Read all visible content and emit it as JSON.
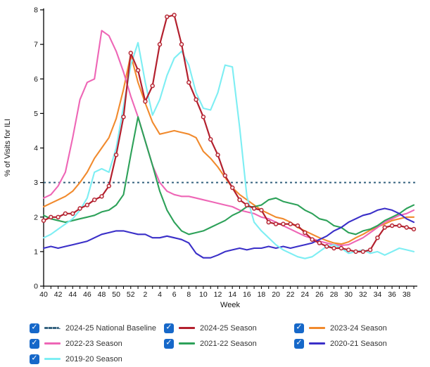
{
  "chart_data": {
    "type": "line",
    "title": "",
    "xlabel": "Week",
    "ylabel": "% of Visits for ILI",
    "ylim": [
      0,
      8
    ],
    "y_ticks": [
      0,
      1,
      2,
      3,
      4,
      5,
      6,
      7,
      8
    ],
    "grid": false,
    "weeks": [
      40,
      41,
      42,
      43,
      44,
      45,
      46,
      47,
      48,
      49,
      50,
      51,
      52,
      1,
      2,
      3,
      4,
      5,
      6,
      7,
      8,
      9,
      10,
      11,
      12,
      13,
      14,
      15,
      16,
      17,
      18,
      19,
      20,
      21,
      22,
      23,
      24,
      25,
      26,
      27,
      28,
      29,
      30,
      31,
      32,
      33,
      34,
      35,
      36,
      37,
      38,
      39
    ],
    "x_tick_label_rule": "labels shown on even week numbers only",
    "baseline": {
      "name": "2024-25 National Baseline",
      "value": 3.0,
      "color": "#35627f",
      "style": "dotted"
    },
    "series": [
      {
        "name": "2024-25 Season",
        "color": "#b3202e",
        "markers": true,
        "marker_fill": "#fbe9e9",
        "values": [
          1.9,
          2.0,
          2.0,
          2.1,
          2.1,
          2.25,
          2.35,
          2.5,
          2.6,
          2.9,
          3.8,
          4.9,
          6.75,
          6.25,
          5.35,
          5.8,
          7.0,
          7.8,
          7.85,
          7.0,
          5.9,
          5.4,
          4.9,
          4.25,
          3.8,
          3.2,
          2.85,
          2.5,
          2.35,
          2.25,
          2.2,
          1.85,
          1.8,
          1.8,
          1.8,
          1.75,
          1.55,
          1.35,
          1.25,
          1.15,
          1.1,
          1.1,
          1.05,
          1.0,
          1.0,
          1.05,
          1.4,
          1.7,
          1.75,
          1.75,
          1.7,
          1.65
        ]
      },
      {
        "name": "2023-24 Season",
        "color": "#f18a2d",
        "markers": false,
        "values": [
          2.3,
          2.4,
          2.5,
          2.6,
          2.75,
          3.0,
          3.3,
          3.7,
          4.0,
          4.3,
          4.85,
          5.7,
          6.7,
          5.9,
          5.3,
          4.75,
          4.4,
          4.45,
          4.5,
          4.45,
          4.4,
          4.3,
          3.9,
          3.7,
          3.45,
          3.15,
          2.85,
          2.65,
          2.5,
          2.35,
          2.2,
          2.1,
          2.0,
          1.95,
          1.85,
          1.7,
          1.6,
          1.5,
          1.4,
          1.32,
          1.25,
          1.22,
          1.28,
          1.4,
          1.5,
          1.62,
          1.72,
          1.8,
          1.9,
          1.95,
          2.0,
          2.0
        ]
      },
      {
        "name": "2022-23 Season",
        "color": "#ee66b6",
        "markers": false,
        "values": [
          2.55,
          2.65,
          2.9,
          3.3,
          4.3,
          5.4,
          5.9,
          6.0,
          7.4,
          7.25,
          6.8,
          6.2,
          5.5,
          4.9,
          4.2,
          3.5,
          3.0,
          2.75,
          2.65,
          2.6,
          2.6,
          2.55,
          2.5,
          2.45,
          2.4,
          2.35,
          2.3,
          2.2,
          2.15,
          2.1,
          2.0,
          1.95,
          1.85,
          1.75,
          1.65,
          1.55,
          1.45,
          1.38,
          1.3,
          1.25,
          1.2,
          1.18,
          1.2,
          1.3,
          1.4,
          1.55,
          1.7,
          1.85,
          1.95,
          2.05,
          2.1,
          2.2
        ]
      },
      {
        "name": "2021-22 Season",
        "color": "#2da159",
        "markers": false,
        "values": [
          2.05,
          1.95,
          1.9,
          1.85,
          1.9,
          1.95,
          2.0,
          2.05,
          2.15,
          2.2,
          2.35,
          2.65,
          3.8,
          4.9,
          4.2,
          3.5,
          2.75,
          2.2,
          1.85,
          1.6,
          1.5,
          1.55,
          1.6,
          1.7,
          1.8,
          1.9,
          2.05,
          2.15,
          2.3,
          2.3,
          2.35,
          2.5,
          2.55,
          2.45,
          2.4,
          2.35,
          2.2,
          2.1,
          1.95,
          1.9,
          1.75,
          1.7,
          1.55,
          1.5,
          1.6,
          1.65,
          1.75,
          1.9,
          2.0,
          2.1,
          2.25,
          2.35
        ]
      },
      {
        "name": "2020-21 Season",
        "color": "#3a2fc8",
        "markers": false,
        "values": [
          1.1,
          1.15,
          1.1,
          1.15,
          1.2,
          1.25,
          1.3,
          1.4,
          1.5,
          1.55,
          1.6,
          1.6,
          1.55,
          1.5,
          1.5,
          1.4,
          1.4,
          1.45,
          1.4,
          1.35,
          1.25,
          0.95,
          0.82,
          0.82,
          0.9,
          1.0,
          1.05,
          1.1,
          1.05,
          1.1,
          1.1,
          1.15,
          1.1,
          1.15,
          1.1,
          1.15,
          1.2,
          1.25,
          1.35,
          1.45,
          1.6,
          1.7,
          1.85,
          1.95,
          2.05,
          2.1,
          2.2,
          2.25,
          2.2,
          2.1,
          1.95,
          1.85
        ]
      },
      {
        "name": "2019-20 Season",
        "color": "#7deef3",
        "markers": false,
        "values": [
          1.4,
          1.5,
          1.65,
          1.8,
          1.95,
          2.2,
          2.55,
          3.3,
          3.4,
          3.3,
          4.0,
          5.2,
          6.4,
          7.05,
          5.9,
          4.95,
          5.4,
          6.1,
          6.6,
          6.8,
          6.4,
          5.6,
          5.15,
          5.1,
          5.6,
          6.4,
          6.35,
          4.6,
          2.6,
          1.85,
          1.6,
          1.4,
          1.2,
          1.05,
          0.95,
          0.85,
          0.8,
          0.85,
          1.0,
          1.15,
          1.2,
          1.1,
          0.95,
          1.0,
          1.05,
          0.95,
          1.0,
          0.9,
          1.0,
          1.1,
          1.05,
          1.0
        ]
      }
    ],
    "legend_position": "bottom"
  },
  "legend": {
    "checkbox_color": "#1668c9",
    "check_glyph": "✓",
    "items": [
      {
        "label": "2024-25 National Baseline",
        "color": "#35627f",
        "style": "dotted",
        "checked": true
      },
      {
        "label": "2024-25 Season",
        "color": "#b3202e",
        "style": "solid",
        "checked": true
      },
      {
        "label": "2023-24 Season",
        "color": "#f18a2d",
        "style": "solid",
        "checked": true
      },
      {
        "label": "2022-23 Season",
        "color": "#ee66b6",
        "style": "solid",
        "checked": true
      },
      {
        "label": "2021-22 Season",
        "color": "#2da159",
        "style": "solid",
        "checked": true
      },
      {
        "label": "2020-21 Season",
        "color": "#3a2fc8",
        "style": "solid",
        "checked": true
      },
      {
        "label": "2019-20 Season",
        "color": "#7deef3",
        "style": "solid",
        "checked": true
      }
    ]
  }
}
